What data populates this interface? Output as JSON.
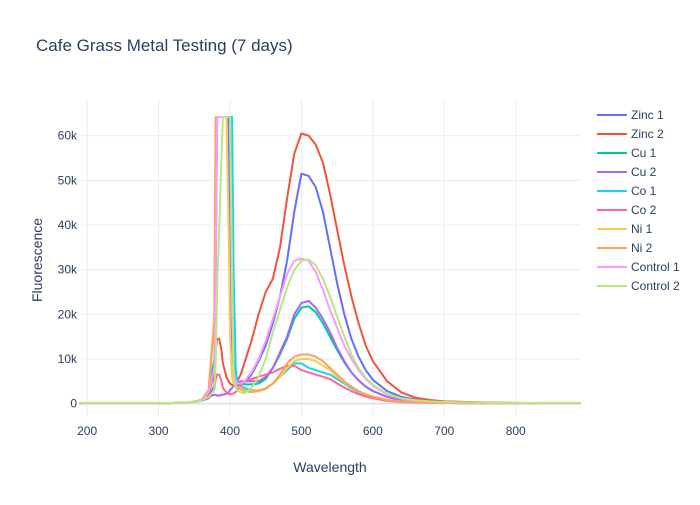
{
  "chart_data": {
    "type": "line",
    "title": "Cafe Grass Metal Testing (7 days)",
    "xlabel": "Wavelength",
    "ylabel": "Fluorescence",
    "xlim": [
      190,
      890
    ],
    "ylim": [
      -3000,
      68000
    ],
    "x_ticks": [
      200,
      300,
      400,
      500,
      600,
      700,
      800
    ],
    "x_tick_labels": [
      "200",
      "300",
      "400",
      "500",
      "600",
      "700",
      "800"
    ],
    "y_ticks": [
      0,
      10000,
      20000,
      30000,
      40000,
      50000,
      60000
    ],
    "y_tick_labels": [
      "0",
      "10k",
      "20k",
      "30k",
      "40k",
      "50k",
      "60k"
    ],
    "grid": true,
    "legend_position": "top-right",
    "x": [
      190,
      250,
      300,
      340,
      360,
      370,
      378,
      380,
      382,
      385,
      388,
      390,
      395,
      398,
      400,
      403,
      405,
      408,
      410,
      415,
      420,
      430,
      440,
      450,
      460,
      470,
      480,
      490,
      500,
      510,
      520,
      530,
      540,
      550,
      560,
      570,
      580,
      590,
      600,
      620,
      640,
      660,
      680,
      700,
      720,
      760,
      800,
      850,
      890
    ],
    "series": [
      {
        "name": "Zinc 1",
        "color": "#636efa",
        "values": [
          100,
          100,
          100,
          200,
          600,
          1200,
          4000,
          30000,
          64200,
          64200,
          64200,
          64200,
          64200,
          64200,
          40000,
          10000,
          5000,
          4000,
          4000,
          4300,
          4800,
          6500,
          9500,
          13000,
          18000,
          24000,
          32000,
          43000,
          51500,
          51000,
          48500,
          43000,
          35000,
          27000,
          20000,
          14500,
          10500,
          7500,
          5300,
          2800,
          1500,
          900,
          600,
          450,
          350,
          200,
          100,
          100,
          100
        ]
      },
      {
        "name": "Zinc 2",
        "color": "#ef553b",
        "values": [
          100,
          100,
          100,
          200,
          700,
          2000,
          7000,
          12000,
          14500,
          14500,
          12000,
          9000,
          6000,
          5000,
          4500,
          4200,
          4200,
          4500,
          5000,
          6500,
          9000,
          14000,
          20000,
          25000,
          28000,
          35000,
          46000,
          56000,
          60500,
          60000,
          58000,
          54000,
          47000,
          39000,
          31000,
          24000,
          18000,
          13000,
          9500,
          5000,
          2500,
          1300,
          800,
          500,
          400,
          250,
          150,
          100,
          100
        ]
      },
      {
        "name": "Cu 1",
        "color": "#00cc96",
        "values": [
          100,
          100,
          100,
          200,
          700,
          2500,
          10000,
          35000,
          64200,
          64200,
          64200,
          64200,
          64200,
          64200,
          64200,
          30000,
          10000,
          5500,
          5000,
          4500,
          4300,
          4300,
          4500,
          5500,
          8000,
          11000,
          14500,
          19000,
          21500,
          21800,
          20500,
          18000,
          15000,
          12000,
          9200,
          7000,
          5200,
          3800,
          2800,
          1500,
          800,
          500,
          350,
          250,
          200,
          150,
          100,
          100,
          100
        ]
      },
      {
        "name": "Cu 2",
        "color": "#ab63fa",
        "values": [
          100,
          100,
          100,
          200,
          700,
          1500,
          2000,
          2000,
          1800,
          1800,
          2000,
          2000,
          2200,
          2500,
          3000,
          3500,
          4000,
          4500,
          4800,
          5000,
          5000,
          5000,
          5000,
          6000,
          8000,
          11500,
          15000,
          20000,
          22500,
          23000,
          21500,
          19000,
          16000,
          12500,
          9500,
          7000,
          5200,
          3800,
          2800,
          1500,
          800,
          500,
          350,
          250,
          200,
          150,
          100,
          100,
          100
        ]
      },
      {
        "name": "Co 1",
        "color": "#19d3f3",
        "values": [
          100,
          100,
          100,
          200,
          700,
          2500,
          8000,
          30000,
          64200,
          64200,
          64200,
          64200,
          64200,
          64200,
          64200,
          64200,
          30000,
          8000,
          5000,
          4000,
          3500,
          3000,
          3000,
          3500,
          4500,
          6000,
          7500,
          9000,
          9000,
          8000,
          7500,
          7000,
          6500,
          5500,
          4500,
          3500,
          2600,
          2000,
          1500,
          800,
          450,
          300,
          200,
          150,
          120,
          100,
          100,
          100,
          100
        ]
      },
      {
        "name": "Co 2",
        "color": "#ff6692",
        "values": [
          100,
          100,
          100,
          200,
          700,
          1500,
          3000,
          5500,
          6500,
          6500,
          5000,
          3500,
          2500,
          2200,
          2100,
          2200,
          2300,
          2600,
          3000,
          4000,
          5000,
          5500,
          6000,
          6500,
          7000,
          7800,
          8500,
          8500,
          7500,
          7000,
          6500,
          6000,
          5500,
          4500,
          3600,
          2800,
          2100,
          1600,
          1200,
          600,
          350,
          250,
          180,
          150,
          120,
          100,
          100,
          100,
          100
        ]
      },
      {
        "name": "Ni 1",
        "color": "#fecb52",
        "values": [
          100,
          100,
          100,
          200,
          800,
          3000,
          20000,
          64200,
          64200,
          64200,
          64200,
          64200,
          64200,
          40000,
          15000,
          6000,
          4500,
          4000,
          3800,
          3500,
          3000,
          2800,
          3000,
          3500,
          4500,
          6000,
          8000,
          9500,
          10000,
          10000,
          9500,
          8500,
          7500,
          6000,
          4800,
          3800,
          2800,
          2100,
          1600,
          900,
          500,
          350,
          250,
          200,
          150,
          100,
          100,
          100,
          100
        ]
      },
      {
        "name": "Ni 2",
        "color": "#ffa15a",
        "values": [
          100,
          100,
          100,
          200,
          800,
          3000,
          18000,
          64200,
          64200,
          64200,
          64200,
          64200,
          64200,
          64200,
          64200,
          30000,
          8000,
          4500,
          3800,
          3200,
          2800,
          2600,
          2800,
          3300,
          4500,
          6500,
          9000,
          10500,
          11000,
          11000,
          10500,
          9500,
          8000,
          6500,
          5000,
          3800,
          2800,
          2000,
          1500,
          800,
          450,
          300,
          200,
          150,
          120,
          100,
          100,
          100,
          100
        ]
      },
      {
        "name": "Control 1",
        "color": "#ff97ff",
        "values": [
          100,
          100,
          100,
          200,
          700,
          2500,
          8000,
          30000,
          64200,
          64200,
          64200,
          64200,
          64200,
          64200,
          64200,
          20000,
          7000,
          5000,
          4500,
          4500,
          5000,
          7000,
          10000,
          14000,
          19000,
          24000,
          29000,
          32000,
          32500,
          32000,
          29500,
          25500,
          21000,
          17000,
          13000,
          10000,
          7500,
          5500,
          4000,
          2000,
          1100,
          700,
          450,
          300,
          250,
          150,
          100,
          100,
          100
        ]
      },
      {
        "name": "Control 2",
        "color": "#b6e880",
        "values": [
          100,
          100,
          100,
          200,
          600,
          1500,
          3000,
          9000,
          25000,
          40000,
          55000,
          64200,
          64200,
          64200,
          64200,
          30000,
          6000,
          3500,
          3000,
          2500,
          2300,
          3500,
          6000,
          10000,
          16000,
          21000,
          26000,
          30000,
          32000,
          32300,
          31000,
          28000,
          24000,
          19500,
          15000,
          11000,
          8000,
          5800,
          4200,
          2200,
          1200,
          750,
          500,
          350,
          300,
          200,
          150,
          100,
          100
        ]
      }
    ]
  }
}
